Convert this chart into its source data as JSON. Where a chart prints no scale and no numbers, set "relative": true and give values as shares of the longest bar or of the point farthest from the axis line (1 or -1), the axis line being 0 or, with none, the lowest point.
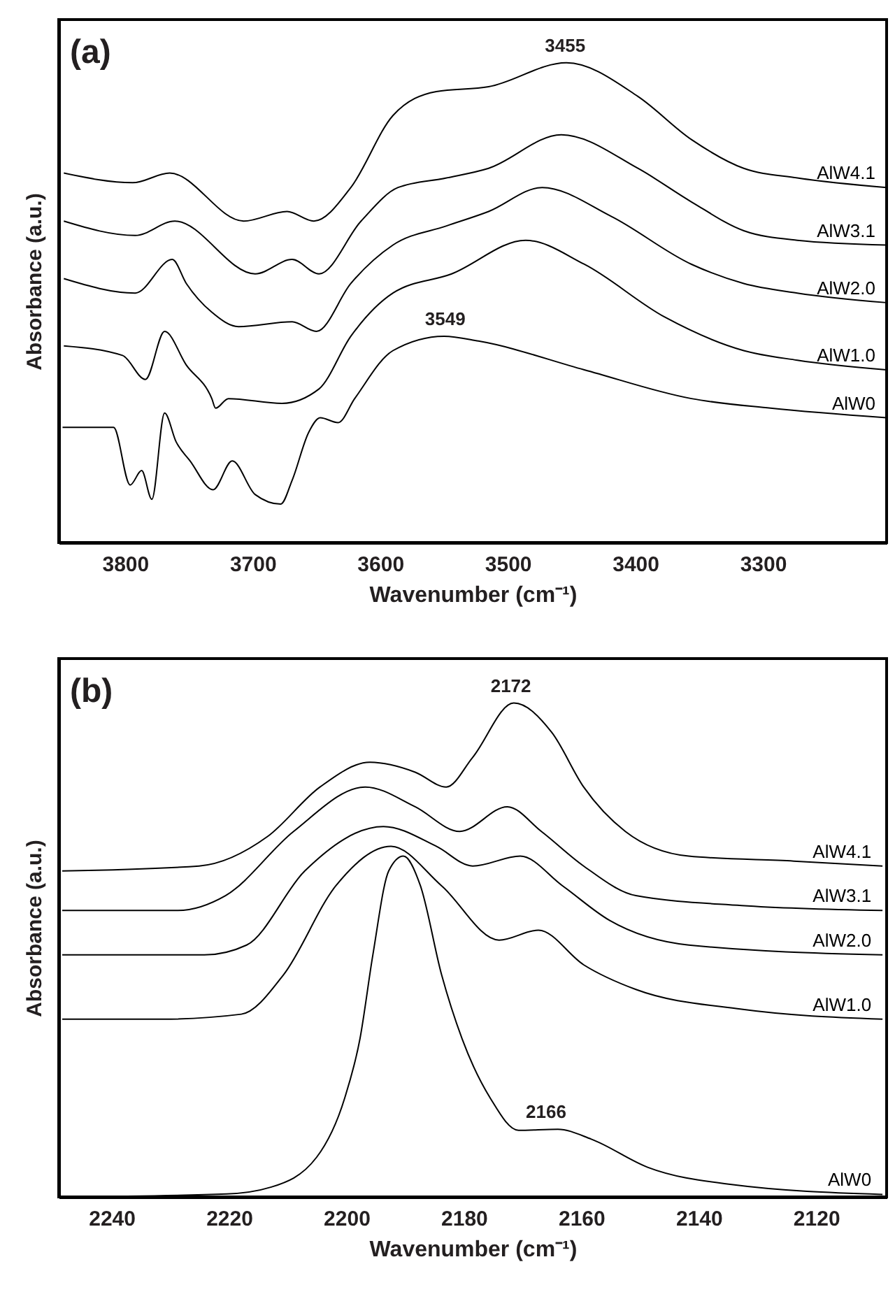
{
  "chart_data": [
    {
      "type": "line",
      "title": "(a)",
      "xlabel": "Wavenumber (cm⁻¹)",
      "ylabel": "Absorbance (a.u.)",
      "relative": true,
      "grid": false,
      "legend": false,
      "xlim": [
        3852,
        3203
      ],
      "xticks": [
        3800,
        3700,
        3600,
        3500,
        3400,
        3300
      ],
      "series": [
        {
          "name": "AlW4.1",
          "color": "#000000",
          "x": [
            3848,
            3794,
            3765,
            3707,
            3673,
            3652,
            3623,
            3590,
            3556,
            3515,
            3454,
            3398,
            3356,
            3315,
            3273,
            3203
          ],
          "values": [
            0.77,
            0.75,
            0.77,
            0.67,
            0.69,
            0.67,
            0.74,
            0.89,
            0.94,
            0.95,
            1.0,
            0.93,
            0.84,
            0.78,
            0.76,
            0.74
          ]
        },
        {
          "name": "AlW3.1",
          "color": "#000000",
          "x": [
            3848,
            3792,
            3761,
            3698,
            3669,
            3648,
            3615,
            3586,
            3548,
            3515,
            3458,
            3398,
            3356,
            3315,
            3273,
            3203
          ],
          "values": [
            0.67,
            0.64,
            0.67,
            0.56,
            0.59,
            0.56,
            0.67,
            0.74,
            0.76,
            0.78,
            0.85,
            0.78,
            0.71,
            0.65,
            0.63,
            0.62
          ]
        },
        {
          "name": "AlW2.0",
          "color": "#000000",
          "x": [
            3848,
            3792,
            3763,
            3752,
            3732,
            3711,
            3669,
            3650,
            3623,
            3590,
            3548,
            3515,
            3473,
            3419,
            3356,
            3315,
            3273,
            3203
          ],
          "values": [
            0.55,
            0.52,
            0.59,
            0.54,
            0.48,
            0.45,
            0.46,
            0.44,
            0.54,
            0.62,
            0.66,
            0.69,
            0.74,
            0.68,
            0.58,
            0.54,
            0.52,
            0.5
          ]
        },
        {
          "name": "AlW1.0",
          "color": "#000000",
          "x": [
            3848,
            3802,
            3784,
            3769,
            3752,
            3732,
            3729,
            3719,
            3677,
            3648,
            3623,
            3590,
            3544,
            3486,
            3440,
            3377,
            3315,
            3273,
            3203
          ],
          "values": [
            0.41,
            0.39,
            0.34,
            0.44,
            0.37,
            0.3,
            0.28,
            0.3,
            0.29,
            0.32,
            0.43,
            0.52,
            0.56,
            0.63,
            0.58,
            0.47,
            0.4,
            0.38,
            0.36
          ]
        },
        {
          "name": "AlW0",
          "color": "#000000",
          "x": [
            3849,
            3809,
            3796,
            3787,
            3779,
            3769,
            3760,
            3749,
            3731,
            3716,
            3698,
            3678,
            3669,
            3656,
            3647,
            3633,
            3620,
            3590,
            3550,
            3523,
            3440,
            3356,
            3294,
            3203
          ],
          "values": [
            0.24,
            0.24,
            0.12,
            0.15,
            0.09,
            0.27,
            0.21,
            0.17,
            0.11,
            0.17,
            0.1,
            0.08,
            0.13,
            0.23,
            0.26,
            0.25,
            0.3,
            0.4,
            0.43,
            0.42,
            0.36,
            0.3,
            0.28,
            0.26
          ]
        }
      ],
      "annotations": [
        {
          "text": "3455",
          "x": 3455,
          "y": 1.0
        },
        {
          "text": "3549",
          "x": 3549,
          "y": 0.43
        }
      ]
    },
    {
      "type": "line",
      "title": "(b)",
      "xlabel": "Wavenumber (cm⁻¹)",
      "ylabel": "Absorbance (a.u.)",
      "relative": true,
      "grid": false,
      "legend": false,
      "xlim": [
        2249,
        2108
      ],
      "xticks": [
        2240,
        2220,
        2200,
        2180,
        2160,
        2140,
        2120
      ],
      "series": [
        {
          "name": "AlW4.1",
          "color": "#000000",
          "x": [
            2248.4,
            2225.1,
            2213.4,
            2204.5,
            2196,
            2188.3,
            2183,
            2178.5,
            2171.5,
            2165,
            2159.6,
            2152.5,
            2141.7,
            2123.8,
            2108.7
          ],
          "values": [
            0.66,
            0.67,
            0.73,
            0.83,
            0.88,
            0.86,
            0.83,
            0.89,
            1.0,
            0.94,
            0.83,
            0.74,
            0.69,
            0.68,
            0.67
          ]
        },
        {
          "name": "AlW3.1",
          "color": "#000000",
          "x": [
            2248.4,
            2228.7,
            2220.6,
            2209,
            2196.8,
            2188.3,
            2180.7,
            2172.6,
            2166.8,
            2159.6,
            2150.7,
            2132.7,
            2108.7
          ],
          "values": [
            0.58,
            0.58,
            0.61,
            0.74,
            0.83,
            0.79,
            0.74,
            0.79,
            0.74,
            0.67,
            0.61,
            0.59,
            0.58
          ]
        },
        {
          "name": "AlW2.0",
          "color": "#000000",
          "x": [
            2248.4,
            2224.2,
            2217,
            2207.1,
            2193.7,
            2184.7,
            2178.5,
            2170.4,
            2163.2,
            2155.2,
            2141.7,
            2108.7
          ],
          "values": [
            0.49,
            0.49,
            0.51,
            0.66,
            0.75,
            0.71,
            0.67,
            0.69,
            0.63,
            0.56,
            0.51,
            0.49
          ]
        },
        {
          "name": "AlW1.0",
          "color": "#000000",
          "x": [
            2248.4,
            2231.3,
            2217.9,
            2210.7,
            2201.8,
            2192.4,
            2183.8,
            2174,
            2167.3,
            2159.6,
            2150.7,
            2132.7,
            2108.7
          ],
          "values": [
            0.36,
            0.36,
            0.37,
            0.45,
            0.63,
            0.71,
            0.63,
            0.52,
            0.54,
            0.47,
            0.42,
            0.38,
            0.36
          ]
        },
        {
          "name": "AlW0",
          "color": "#000000",
          "x": [
            2248.1,
            2220.4,
            2212.8,
            2205.1,
            2200.3,
            2197.7,
            2195.5,
            2192.8,
            2190.3,
            2187.4,
            2183.8,
            2180.3,
            2175.5,
            2170.7,
            2164,
            2158.3,
            2148.7,
            2134.4,
            2108.7
          ],
          "values": [
            0.0,
            0.006,
            0.02,
            0.08,
            0.2,
            0.32,
            0.49,
            0.66,
            0.69,
            0.63,
            0.45,
            0.32,
            0.2,
            0.135,
            0.137,
            0.117,
            0.06,
            0.025,
            0.005
          ]
        }
      ],
      "annotations": [
        {
          "text": "2172",
          "x": 2172,
          "y": 1.0
        },
        {
          "text": "2166",
          "x": 2166,
          "y": 0.137
        }
      ]
    }
  ]
}
